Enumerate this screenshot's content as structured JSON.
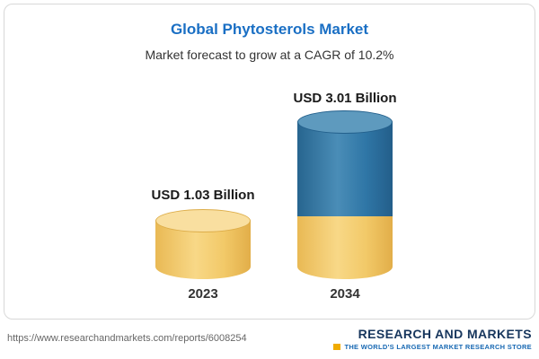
{
  "header": {
    "title": "Global Phytosterols Market",
    "subtitle": "Market forecast to grow at a CAGR of 10.2%"
  },
  "chart_data": {
    "type": "bar",
    "bar_style": "3d-cylinder",
    "title": "Global Phytosterols Market",
    "subtitle": "Market forecast to grow at a CAGR of 10.2%",
    "unit": "USD Billion",
    "categories": [
      "2023",
      "2034"
    ],
    "values": [
      1.03,
      3.01
    ],
    "value_labels": [
      "USD 1.03 Billion",
      "USD 3.01 Billion"
    ],
    "cagr_percent": 10.2,
    "legend": "none",
    "grid": false,
    "colors": {
      "base_segment": "#f2c964",
      "growth_segment": "#2f76a6",
      "title_text": "#1a6fc4"
    }
  },
  "footer": {
    "url": "https://www.researchandmarkets.com/reports/6008254",
    "logo_name": "RESEARCH AND MARKETS",
    "logo_tagline": "THE WORLD'S LARGEST MARKET RESEARCH STORE"
  }
}
